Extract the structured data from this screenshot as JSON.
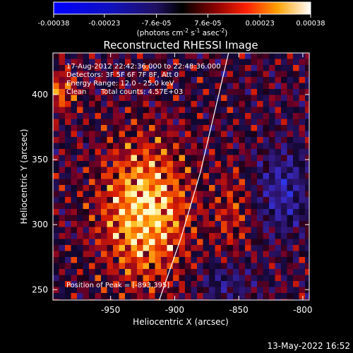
{
  "chart_data": {
    "type": "heatmap",
    "title": "Reconstructed RHESSI Image",
    "xlabel": "Heliocentric X (arcsec)",
    "ylabel": "Heliocentric Y (arcsec)",
    "xlim": [
      -995,
      -795
    ],
    "ylim": [
      242,
      432
    ],
    "x_ticks": [
      "-950",
      "-900",
      "-850",
      "-800"
    ],
    "y_ticks": [
      "250",
      "300",
      "350",
      "400"
    ],
    "colorbar": {
      "label_main": "(photons cm",
      "sup1": "-2",
      "mid1": " s",
      "sup2": "-1",
      "mid2": " asec",
      "sup3": "-2",
      "close": ")",
      "ticks": [
        "-0.00038",
        "-0.00023",
        "-7.6e-05",
        "7.6e-05",
        "0.00023",
        "0.00038"
      ],
      "range": [
        -0.00038,
        0.00038
      ]
    },
    "annotations": {
      "time_range": "17-Aug-2012 22:42:36.000 to 22:48:36.000",
      "detectors": "Detectors: 3F 5F 6F 7F 8F, Att 0",
      "energy_range": "Energy Range: 12.0 - 25.0 keV",
      "clean": "Clean",
      "total_counts": "Total counts: 4.57E+03",
      "peak": "Position of Peak = [-893,395]"
    },
    "limb_curve": [
      [
        -912,
        242
      ],
      [
        -895,
        290
      ],
      [
        -880,
        340
      ],
      [
        -868,
        390
      ],
      [
        -858,
        432
      ]
    ]
  },
  "footer": {
    "timestamp": "13-May-2022 16:52"
  }
}
